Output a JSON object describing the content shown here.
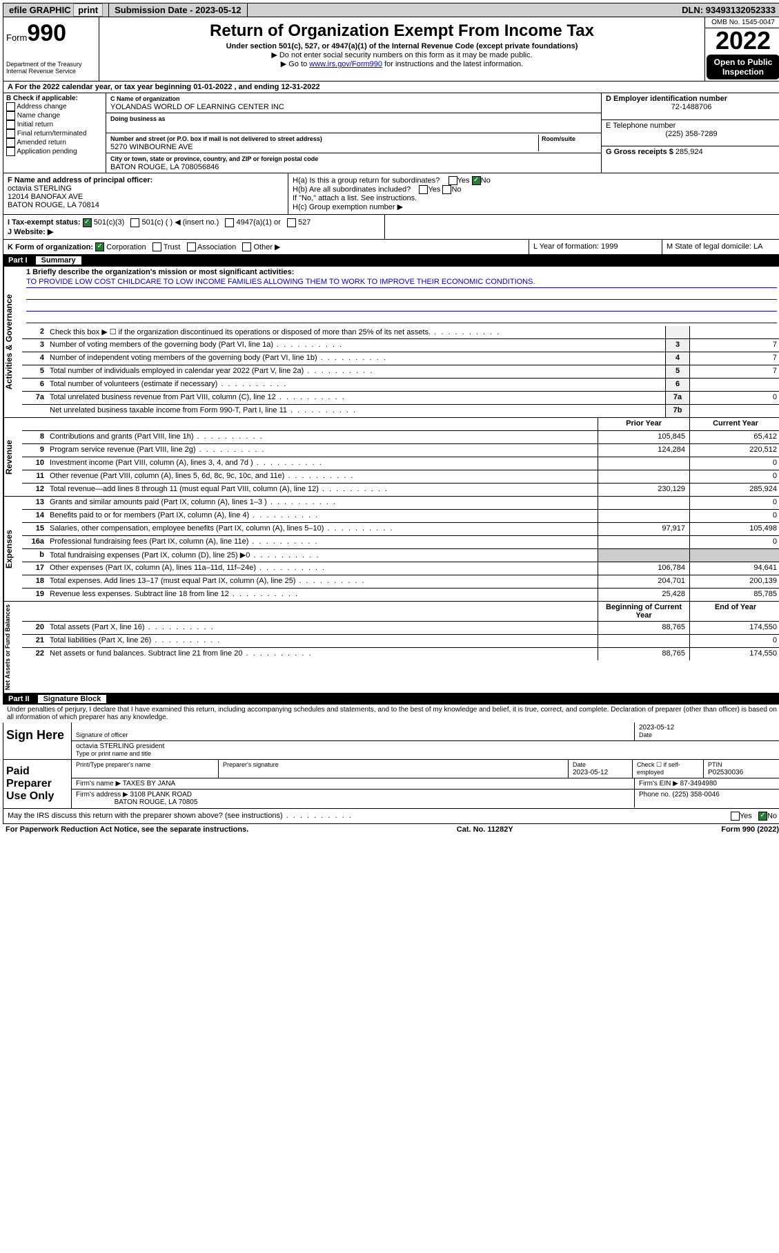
{
  "topbar": {
    "efile": "efile GRAPHIC",
    "print": "print",
    "sub_label": "Submission Date - ",
    "sub_date": "2023-05-12",
    "dln_label": "DLN: ",
    "dln": "93493132052333"
  },
  "header": {
    "form_word": "Form",
    "form_num": "990",
    "dept": "Department of the Treasury",
    "irs": "Internal Revenue Service",
    "title": "Return of Organization Exempt From Income Tax",
    "sub1": "Under section 501(c), 527, or 4947(a)(1) of the Internal Revenue Code (except private foundations)",
    "sub2": "▶ Do not enter social security numbers on this form as it may be made public.",
    "sub3_pre": "▶ Go to ",
    "sub3_link": "www.irs.gov/Form990",
    "sub3_post": " for instructions and the latest information.",
    "omb": "OMB No. 1545-0047",
    "year": "2022",
    "open": "Open to Public Inspection"
  },
  "row_a": {
    "text": "A For the 2022 calendar year, or tax year beginning 01-01-2022   , and ending 12-31-2022"
  },
  "col_b": {
    "title": "B Check if applicable:",
    "opts": [
      "Address change",
      "Name change",
      "Initial return",
      "Final return/terminated",
      "Amended return",
      "Application pending"
    ]
  },
  "col_c": {
    "name_label": "C Name of organization",
    "name": "YOLANDAS WORLD OF LEARNING CENTER INC",
    "dba_label": "Doing business as",
    "dba": "",
    "addr_label": "Number and street (or P.O. box if mail is not delivered to street address)",
    "room_label": "Room/suite",
    "addr": "5270 WINBOURNE AVE",
    "city_label": "City or town, state or province, country, and ZIP or foreign postal code",
    "city": "BATON ROUGE, LA  708056846"
  },
  "col_d": {
    "label": "D Employer identification number",
    "ein": "72-1488706",
    "e_label": "E Telephone number",
    "phone": "(225) 358-7289",
    "g_label": "G Gross receipts $ ",
    "gross": "285,924"
  },
  "row_f": {
    "f_label": "F  Name and address of principal officer:",
    "f_name": "octavia STERLING",
    "f_addr1": "12014 BANOFAX AVE",
    "f_addr2": "BATON ROUGE, LA  70814",
    "ha": "H(a)  Is this a group return for subordinates?",
    "hb": "H(b)  Are all subordinates included?",
    "hb_note": "If \"No,\" attach a list. See instructions.",
    "hc": "H(c)  Group exemption number ▶",
    "yes": "Yes",
    "no": "No"
  },
  "row_i": {
    "label": "I  Tax-exempt status:",
    "o1": "501(c)(3)",
    "o2": "501(c) (  ) ◀ (insert no.)",
    "o3": "4947(a)(1) or",
    "o4": "527"
  },
  "row_j": {
    "label": "J  Website: ▶"
  },
  "row_k": {
    "label": "K Form of organization:",
    "o1": "Corporation",
    "o2": "Trust",
    "o3": "Association",
    "o4": "Other ▶",
    "l": "L Year of formation: 1999",
    "m": "M State of legal domicile: LA"
  },
  "part1": {
    "num": "Part I",
    "title": "Summary"
  },
  "mission": {
    "q": "1  Briefly describe the organization's mission or most significant activities:",
    "text": "TO PROVIDE LOW COST CHILDCARE TO LOW INCOME FAMILIES ALLOWING THEM TO WORK TO IMPROVE THEIR ECONOMIC CONDITIONS."
  },
  "tabs": {
    "gov": "Activities & Governance",
    "rev": "Revenue",
    "exp": "Expenses",
    "net": "Net Assets or Fund Balances"
  },
  "lines_gov": [
    {
      "n": "2",
      "d": "Check this box ▶ ☐  if the organization discontinued its operations or disposed of more than 25% of its net assets.",
      "bn": "",
      "v": ""
    },
    {
      "n": "3",
      "d": "Number of voting members of the governing body (Part VI, line 1a)",
      "bn": "3",
      "v": "7"
    },
    {
      "n": "4",
      "d": "Number of independent voting members of the governing body (Part VI, line 1b)",
      "bn": "4",
      "v": "7"
    },
    {
      "n": "5",
      "d": "Total number of individuals employed in calendar year 2022 (Part V, line 2a)",
      "bn": "5",
      "v": "7"
    },
    {
      "n": "6",
      "d": "Total number of volunteers (estimate if necessary)",
      "bn": "6",
      "v": ""
    },
    {
      "n": "7a",
      "d": "Total unrelated business revenue from Part VIII, column (C), line 12",
      "bn": "7a",
      "v": "0"
    },
    {
      "n": "",
      "d": "Net unrelated business taxable income from Form 990-T, Part I, line 11",
      "bn": "7b",
      "v": ""
    }
  ],
  "cols": {
    "prior": "Prior Year",
    "curr": "Current Year",
    "boy": "Beginning of Current Year",
    "eoy": "End of Year"
  },
  "lines_rev": [
    {
      "n": "8",
      "d": "Contributions and grants (Part VIII, line 1h)",
      "p": "105,845",
      "c": "65,412"
    },
    {
      "n": "9",
      "d": "Program service revenue (Part VIII, line 2g)",
      "p": "124,284",
      "c": "220,512"
    },
    {
      "n": "10",
      "d": "Investment income (Part VIII, column (A), lines 3, 4, and 7d )",
      "p": "",
      "c": "0"
    },
    {
      "n": "11",
      "d": "Other revenue (Part VIII, column (A), lines 5, 6d, 8c, 9c, 10c, and 11e)",
      "p": "",
      "c": "0"
    },
    {
      "n": "12",
      "d": "Total revenue—add lines 8 through 11 (must equal Part VIII, column (A), line 12)",
      "p": "230,129",
      "c": "285,924"
    }
  ],
  "lines_exp": [
    {
      "n": "13",
      "d": "Grants and similar amounts paid (Part IX, column (A), lines 1–3 )",
      "p": "",
      "c": "0"
    },
    {
      "n": "14",
      "d": "Benefits paid to or for members (Part IX, column (A), line 4)",
      "p": "",
      "c": "0"
    },
    {
      "n": "15",
      "d": "Salaries, other compensation, employee benefits (Part IX, column (A), lines 5–10)",
      "p": "97,917",
      "c": "105,498"
    },
    {
      "n": "16a",
      "d": "Professional fundraising fees (Part IX, column (A), line 11e)",
      "p": "",
      "c": "0"
    },
    {
      "n": "b",
      "d": "Total fundraising expenses (Part IX, column (D), line 25) ▶0",
      "p": "—",
      "c": "—"
    },
    {
      "n": "17",
      "d": "Other expenses (Part IX, column (A), lines 11a–11d, 11f–24e)",
      "p": "106,784",
      "c": "94,641"
    },
    {
      "n": "18",
      "d": "Total expenses. Add lines 13–17 (must equal Part IX, column (A), line 25)",
      "p": "204,701",
      "c": "200,139"
    },
    {
      "n": "19",
      "d": "Revenue less expenses. Subtract line 18 from line 12",
      "p": "25,428",
      "c": "85,785"
    }
  ],
  "lines_net": [
    {
      "n": "20",
      "d": "Total assets (Part X, line 16)",
      "p": "88,765",
      "c": "174,550"
    },
    {
      "n": "21",
      "d": "Total liabilities (Part X, line 26)",
      "p": "",
      "c": "0"
    },
    {
      "n": "22",
      "d": "Net assets or fund balances. Subtract line 21 from line 20",
      "p": "88,765",
      "c": "174,550"
    }
  ],
  "part2": {
    "num": "Part II",
    "title": "Signature Block"
  },
  "penalty": "Under penalties of perjury, I declare that I have examined this return, including accompanying schedules and statements, and to the best of my knowledge and belief, it is true, correct, and complete. Declaration of preparer (other than officer) is based on all information of which preparer has any knowledge.",
  "sign": {
    "here": "Sign Here",
    "sig_label": "Signature of officer",
    "date_label": "Date",
    "date": "2023-05-12",
    "name": "octavia STERLING  president",
    "name_label": "Type or print name and title"
  },
  "paid": {
    "title": "Paid Preparer Use Only",
    "c1": "Print/Type preparer's name",
    "c2": "Preparer's signature",
    "c3": "Date",
    "c3v": "2023-05-12",
    "c4": "Check ☐ if self-employed",
    "c5": "PTIN",
    "c5v": "P02530036",
    "firm_label": "Firm's name   ▶ ",
    "firm": "TAXES BY JANA",
    "ein_label": "Firm's EIN ▶ ",
    "ein": "87-3494980",
    "addr_label": "Firm's address ▶ ",
    "addr": "3108 PLANK ROAD",
    "addr2": "BATON ROUGE, LA  70805",
    "phone_label": "Phone no. ",
    "phone": "(225) 358-0046"
  },
  "may": {
    "q": "May the IRS discuss this return with the preparer shown above? (see instructions)",
    "yes": "Yes",
    "no": "No"
  },
  "footer": {
    "l": "For Paperwork Reduction Act Notice, see the separate instructions.",
    "m": "Cat. No. 11282Y",
    "r": "Form 990 (2022)"
  }
}
